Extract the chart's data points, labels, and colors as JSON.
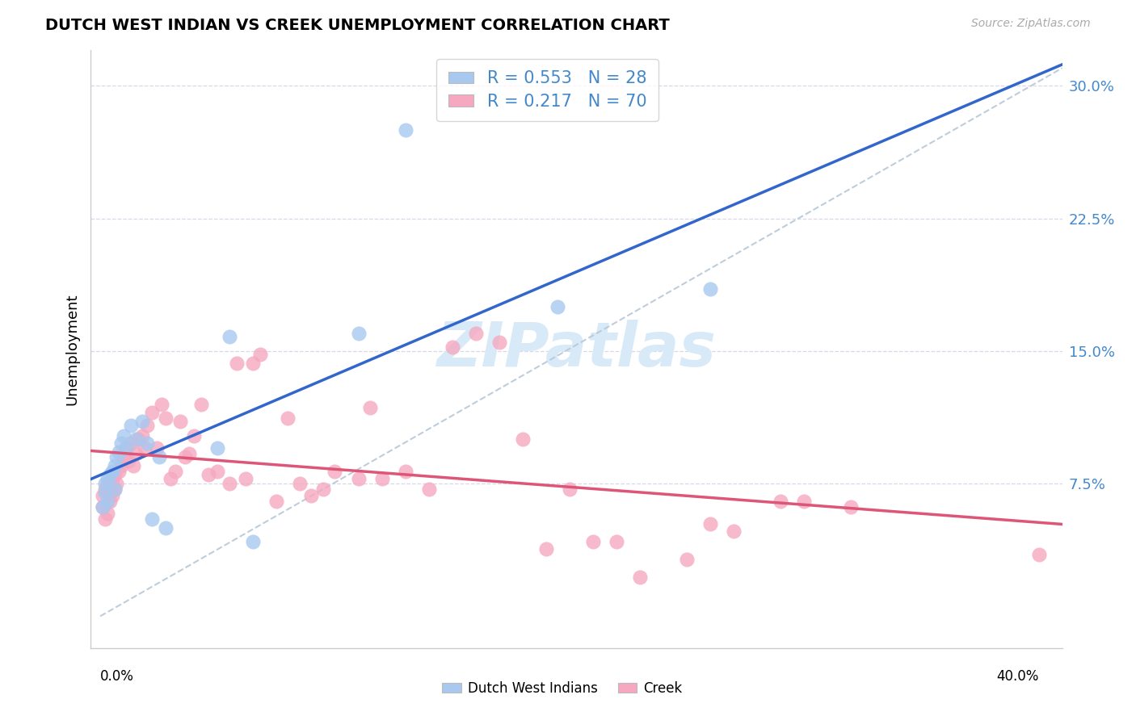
{
  "title": "DUTCH WEST INDIAN VS CREEK UNEMPLOYMENT CORRELATION CHART",
  "source": "Source: ZipAtlas.com",
  "ylabel": "Unemployment",
  "ytick_labels": [
    "7.5%",
    "15.0%",
    "22.5%",
    "30.0%"
  ],
  "ytick_values": [
    0.075,
    0.15,
    0.225,
    0.3
  ],
  "xlim": [
    -0.004,
    0.41
  ],
  "ylim": [
    -0.018,
    0.32
  ],
  "r_blue": "0.553",
  "n_blue": "28",
  "r_pink": "0.217",
  "n_pink": "70",
  "blue_scatter_color": "#a8c8f0",
  "pink_scatter_color": "#f5a8c0",
  "blue_line_color": "#3366cc",
  "pink_line_color": "#dd5577",
  "dashed_color": "#b8c8d8",
  "grid_color": "#d8d8e8",
  "right_tick_color": "#4488cc",
  "watermark_text": "ZIPatlas",
  "watermark_color": "#d8eaf8",
  "legend_label1": "Dutch West Indians",
  "legend_label2": "Creek",
  "blue_x": [
    0.001,
    0.002,
    0.002,
    0.003,
    0.003,
    0.004,
    0.005,
    0.006,
    0.006,
    0.007,
    0.008,
    0.009,
    0.01,
    0.011,
    0.013,
    0.015,
    0.018,
    0.02,
    0.022,
    0.025,
    0.028,
    0.05,
    0.055,
    0.065,
    0.11,
    0.13,
    0.195,
    0.26
  ],
  "blue_y": [
    0.062,
    0.07,
    0.075,
    0.065,
    0.078,
    0.08,
    0.082,
    0.085,
    0.072,
    0.09,
    0.093,
    0.098,
    0.102,
    0.095,
    0.108,
    0.1,
    0.11,
    0.098,
    0.055,
    0.09,
    0.05,
    0.095,
    0.158,
    0.042,
    0.16,
    0.275,
    0.175,
    0.185
  ],
  "pink_x": [
    0.001,
    0.001,
    0.002,
    0.002,
    0.003,
    0.003,
    0.004,
    0.004,
    0.005,
    0.005,
    0.006,
    0.006,
    0.007,
    0.008,
    0.009,
    0.01,
    0.011,
    0.012,
    0.013,
    0.014,
    0.015,
    0.016,
    0.018,
    0.019,
    0.02,
    0.022,
    0.024,
    0.026,
    0.028,
    0.03,
    0.032,
    0.034,
    0.036,
    0.038,
    0.04,
    0.043,
    0.046,
    0.05,
    0.055,
    0.058,
    0.062,
    0.065,
    0.068,
    0.075,
    0.08,
    0.085,
    0.09,
    0.095,
    0.1,
    0.11,
    0.115,
    0.12,
    0.13,
    0.14,
    0.15,
    0.16,
    0.17,
    0.18,
    0.19,
    0.2,
    0.21,
    0.22,
    0.23,
    0.25,
    0.26,
    0.27,
    0.29,
    0.3,
    0.32,
    0.4
  ],
  "pink_y": [
    0.062,
    0.068,
    0.055,
    0.072,
    0.058,
    0.075,
    0.065,
    0.07,
    0.068,
    0.078,
    0.072,
    0.08,
    0.075,
    0.082,
    0.085,
    0.09,
    0.095,
    0.088,
    0.098,
    0.085,
    0.092,
    0.1,
    0.102,
    0.095,
    0.108,
    0.115,
    0.095,
    0.12,
    0.112,
    0.078,
    0.082,
    0.11,
    0.09,
    0.092,
    0.102,
    0.12,
    0.08,
    0.082,
    0.075,
    0.143,
    0.078,
    0.143,
    0.148,
    0.065,
    0.112,
    0.075,
    0.068,
    0.072,
    0.082,
    0.078,
    0.118,
    0.078,
    0.082,
    0.072,
    0.152,
    0.16,
    0.155,
    0.1,
    0.038,
    0.072,
    0.042,
    0.042,
    0.022,
    0.032,
    0.052,
    0.048,
    0.065,
    0.065,
    0.062,
    0.035
  ]
}
